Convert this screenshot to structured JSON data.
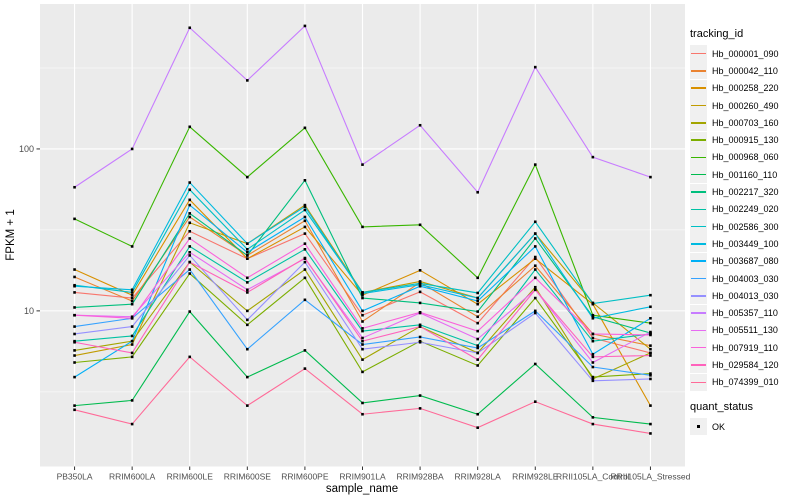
{
  "chart_data": {
    "type": "line",
    "title": "",
    "xlabel": "sample_name",
    "ylabel": "FPKM + 1",
    "y_scale": "log10",
    "y_ticks": [
      10,
      100
    ],
    "y_tick_labels": [
      "10",
      "100"
    ],
    "ylim_log10": [
      0.039,
      2.895
    ],
    "grid": "on",
    "panel_bg": "#EBEBEB",
    "grid_color": "#FFFFFF",
    "point_shape": "filled-black-square",
    "legend_position": "right",
    "legend_title": "tracking_id",
    "legend2_title": "quant_status",
    "legend2_items": [
      "OK"
    ],
    "categories": [
      "PB350LA",
      "RRIM600LA",
      "RRIM600LE",
      "RRIM600SE",
      "RRIM600PE",
      "RRIM901LA",
      "RRIM928BA",
      "RRIM928LA",
      "RRIM928LE",
      "RRII105LA_Control",
      "RRII105LA_Stressed"
    ],
    "series": [
      {
        "name": "Hb_000001_090",
        "color": "#F8766D",
        "values": [
          13,
          12,
          31,
          21,
          30,
          9.4,
          13.1,
          8.4,
          21.5,
          6.8,
          5.5
        ]
      },
      {
        "name": "Hb_000042_110",
        "color": "#EA8331",
        "values": [
          16.2,
          11.5,
          38,
          22,
          36,
          8.6,
          15,
          9.2,
          19,
          7.2,
          6.1
        ]
      },
      {
        "name": "Hb_000258_220",
        "color": "#D89000",
        "values": [
          18,
          12.5,
          48.5,
          21,
          33,
          12.5,
          17.8,
          11,
          21,
          11,
          2.6
        ]
      },
      {
        "name": "Hb_000260_490",
        "color": "#C09B00",
        "values": [
          5.3,
          6.2,
          35,
          26,
          45,
          13,
          15.2,
          12,
          30,
          11.2,
          5.8
        ]
      },
      {
        "name": "Hb_000703_160",
        "color": "#A3A500",
        "values": [
          5.7,
          6.5,
          20,
          10,
          18,
          5,
          8,
          5.5,
          14,
          3.8,
          5.5
        ]
      },
      {
        "name": "Hb_000915_130",
        "color": "#7CAE00",
        "values": [
          4.8,
          5.2,
          17,
          8.2,
          16,
          4.2,
          6.5,
          4.6,
          12,
          3.9,
          4.1
        ]
      },
      {
        "name": "Hb_000968_060",
        "color": "#39B600",
        "values": [
          37,
          25,
          137,
          67,
          135,
          33,
          34,
          16,
          80,
          9.4,
          8.4
        ]
      },
      {
        "name": "Hb_001160_110",
        "color": "#00BB4E",
        "values": [
          2.6,
          2.8,
          9.9,
          3.9,
          5.7,
          2.7,
          3,
          2.3,
          4.7,
          2.2,
          2
        ]
      },
      {
        "name": "Hb_002217_320",
        "color": "#00BF7D",
        "values": [
          10.5,
          11,
          40,
          22,
          64,
          12,
          11.2,
          9.9,
          28,
          9.2,
          7.3
        ]
      },
      {
        "name": "Hb_002249_020",
        "color": "#00C1A3",
        "values": [
          6.5,
          7,
          25,
          15,
          24,
          7.5,
          8.2,
          6.1,
          18,
          6.5,
          7.2
        ]
      },
      {
        "name": "Hb_002586_300",
        "color": "#00BFC4",
        "values": [
          14.4,
          13,
          56,
          24,
          42,
          13,
          14.8,
          12.9,
          35.5,
          11.1,
          12.5
        ]
      },
      {
        "name": "Hb_003449_100",
        "color": "#00BAE0",
        "values": [
          14.2,
          13.5,
          62,
          26,
          44,
          12.8,
          14.5,
          12,
          30,
          9,
          10.6
        ]
      },
      {
        "name": "Hb_003687_080",
        "color": "#00B0F6",
        "values": [
          3.9,
          6.5,
          45,
          23,
          38,
          10,
          14.2,
          11.5,
          25,
          5.4,
          9
        ]
      },
      {
        "name": "Hb_004003_030",
        "color": "#35A2FF",
        "values": [
          8,
          9,
          18,
          5.8,
          11.7,
          6.2,
          6.9,
          5.9,
          10,
          4.5,
          4
        ]
      },
      {
        "name": "Hb_004013_030",
        "color": "#9590FF",
        "values": [
          7.2,
          8,
          22,
          8.8,
          20,
          5.8,
          6.4,
          5.5,
          9.7,
          3.7,
          3.8
        ]
      },
      {
        "name": "Hb_005357_110",
        "color": "#C77CFF",
        "values": [
          58,
          100,
          560,
          265,
          575,
          80,
          140,
          54,
          320,
          89,
          67
        ]
      },
      {
        "name": "Hb_005511_130",
        "color": "#E76BF3",
        "values": [
          9.4,
          9.2,
          23,
          13.5,
          21,
          6.8,
          9.7,
          6.7,
          13.5,
          4.8,
          7.4
        ]
      },
      {
        "name": "Hb_007919_110",
        "color": "#FA62DB",
        "values": [
          9.4,
          9,
          28,
          16,
          26,
          7.8,
          9.8,
          7.5,
          16,
          7.2,
          7.1
        ]
      },
      {
        "name": "Hb_029584_120",
        "color": "#FF62BC",
        "values": [
          6.4,
          5.5,
          20,
          13,
          21.2,
          6.5,
          8,
          5,
          13.5,
          5.2,
          5.3
        ]
      },
      {
        "name": "Hb_074399_010",
        "color": "#FF6A98",
        "values": [
          2.45,
          2,
          5.2,
          2.6,
          4.4,
          2.3,
          2.5,
          1.9,
          2.75,
          2,
          1.75
        ]
      }
    ]
  }
}
